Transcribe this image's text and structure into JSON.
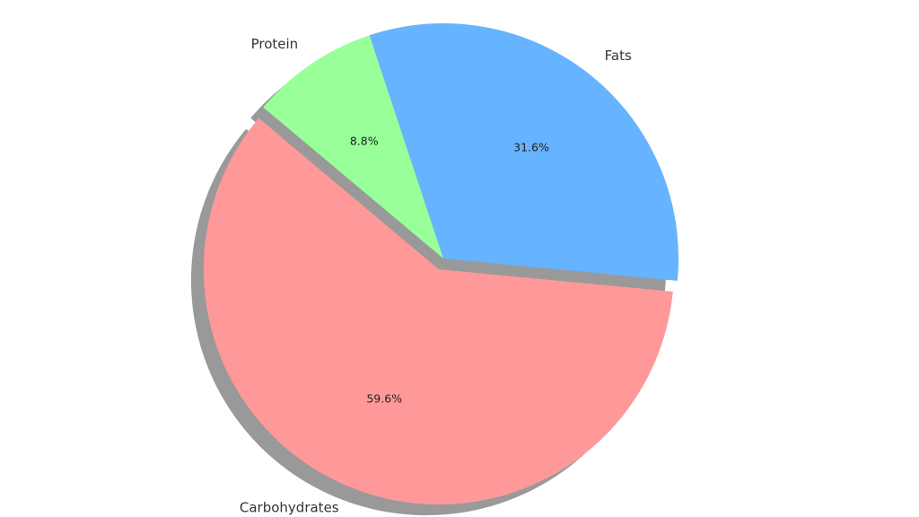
{
  "chart_data": {
    "type": "pie",
    "title": "",
    "categories": [
      "Carbohydrates",
      "Fats",
      "Protein"
    ],
    "values": [
      59.6,
      31.6,
      8.8
    ],
    "value_labels": [
      "59.6%",
      "31.6%",
      "8.8%"
    ],
    "colors": [
      "#ff9999",
      "#66b3ff",
      "#99ff99"
    ],
    "explode": [
      0.05,
      0,
      0
    ],
    "shadow": true,
    "legend": false
  }
}
